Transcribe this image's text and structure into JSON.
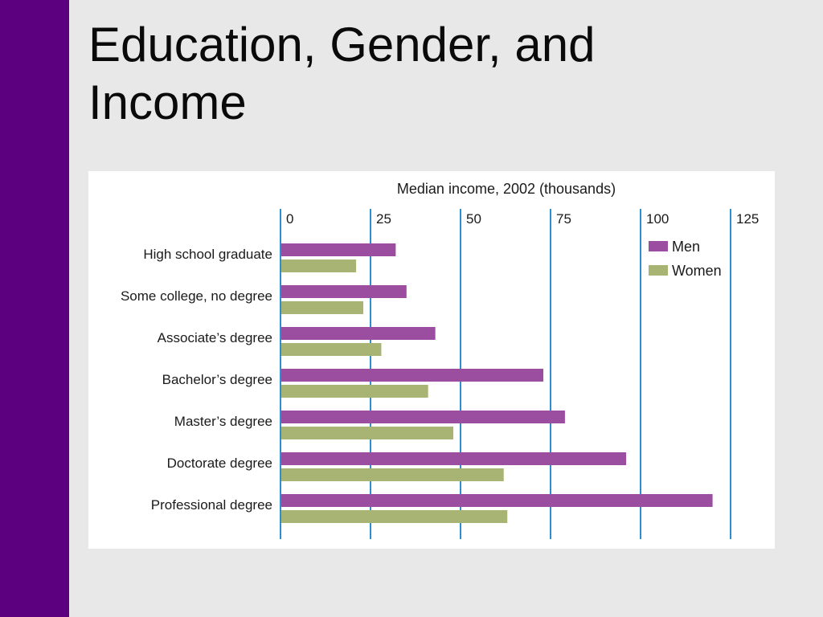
{
  "slide": {
    "title_line1": "Education, Gender, and",
    "title_line2": "Income"
  },
  "colors": {
    "sidebar": "#5c0080",
    "men": "#9b4d9f",
    "women": "#a8b474",
    "axis_lines": "#2d8fd1",
    "background": "#e8e8e8"
  },
  "chart_data": {
    "type": "bar",
    "orientation": "horizontal",
    "title": "Median income, 2002 (thousands)",
    "categories": [
      "High school graduate",
      "Some college, no degree",
      "Associate’s degree",
      "Bachelor’s degree",
      "Master’s degree",
      "Doctorate degree",
      "Professional degree"
    ],
    "series": [
      {
        "name": "Men",
        "color": "#9b4d9f",
        "values": [
          32,
          35,
          43,
          73,
          79,
          96,
          120
        ]
      },
      {
        "name": "Women",
        "color": "#a8b474",
        "values": [
          21,
          23,
          28,
          41,
          48,
          62,
          63
        ]
      }
    ],
    "xlim": [
      0,
      125
    ],
    "xticks": [
      "0",
      "25",
      "50",
      "75",
      "100",
      "125"
    ],
    "grid": true,
    "legend_position": "top-right"
  }
}
